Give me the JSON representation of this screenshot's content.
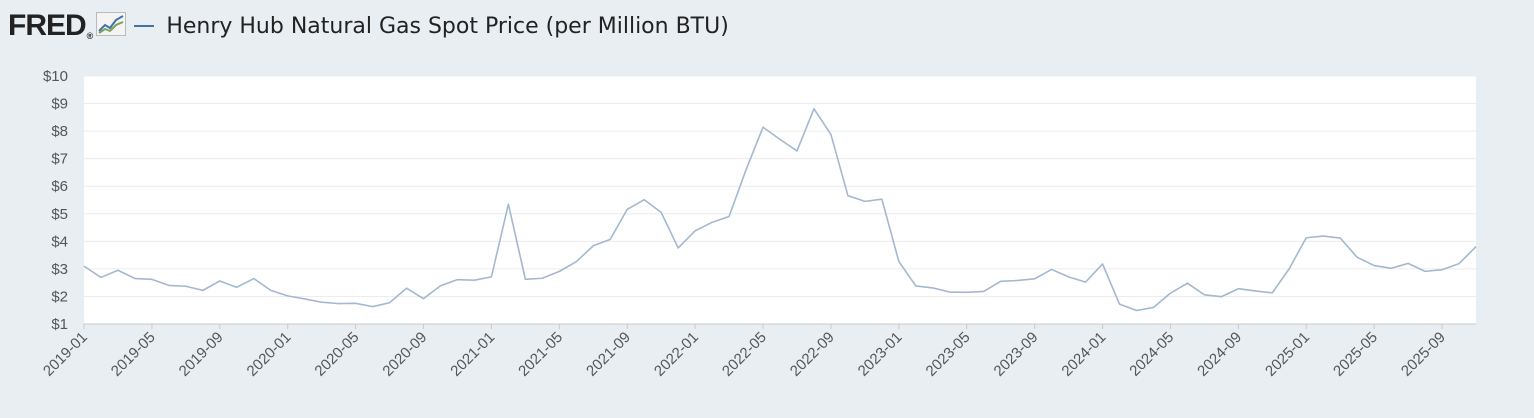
{
  "header": {
    "logo_text": "FRED",
    "logo_mark": "®",
    "logo_icon": "line-chart-icon",
    "series_title": "Henry Hub Natural Gas Spot Price (per Million BTU)",
    "series_color": "#4572a7"
  },
  "chart_data": {
    "type": "line",
    "title": "Henry Hub Natural Gas Spot Price (per Million BTU)",
    "xlabel": "",
    "ylabel": "",
    "ylim": [
      1,
      10
    ],
    "yticks": [
      "$1",
      "$2",
      "$3",
      "$4",
      "$5",
      "$6",
      "$7",
      "$8",
      "$9",
      "$10"
    ],
    "xticks": [
      "2019-01",
      "2019-05",
      "2019-09",
      "2020-01",
      "2020-05",
      "2020-09",
      "2021-01",
      "2021-05",
      "2021-09",
      "2022-01",
      "2022-05",
      "2022-09",
      "2023-01",
      "2023-05",
      "2023-09",
      "2024-01",
      "2024-05",
      "2024-09",
      "2025-01",
      "2025-05",
      "2025-09"
    ],
    "line_color": "#a3b8d0",
    "grid": true,
    "x": [
      "2019-01",
      "2019-02",
      "2019-03",
      "2019-04",
      "2019-05",
      "2019-06",
      "2019-07",
      "2019-08",
      "2019-09",
      "2019-10",
      "2019-11",
      "2019-12",
      "2020-01",
      "2020-02",
      "2020-03",
      "2020-04",
      "2020-05",
      "2020-06",
      "2020-07",
      "2020-08",
      "2020-09",
      "2020-10",
      "2020-11",
      "2020-12",
      "2021-01",
      "2021-02",
      "2021-03",
      "2021-04",
      "2021-05",
      "2021-06",
      "2021-07",
      "2021-08",
      "2021-09",
      "2021-10",
      "2021-11",
      "2021-12",
      "2022-01",
      "2022-02",
      "2022-03",
      "2022-04",
      "2022-05",
      "2022-06",
      "2022-07",
      "2022-08",
      "2022-09",
      "2022-10",
      "2022-11",
      "2022-12",
      "2023-01",
      "2023-02",
      "2023-03",
      "2023-04",
      "2023-05",
      "2023-06",
      "2023-07",
      "2023-08",
      "2023-09",
      "2023-10",
      "2023-11",
      "2023-12",
      "2024-01",
      "2024-02",
      "2024-03",
      "2024-04",
      "2024-05",
      "2024-06",
      "2024-07",
      "2024-08",
      "2024-09",
      "2024-10",
      "2024-11",
      "2024-12",
      "2025-01",
      "2025-02",
      "2025-03",
      "2025-04",
      "2025-05",
      "2025-06",
      "2025-07",
      "2025-08",
      "2025-09",
      "2025-10",
      "2025-11"
    ],
    "series": [
      {
        "values": [
          3.1,
          2.69,
          2.95,
          2.65,
          2.62,
          2.4,
          2.37,
          2.22,
          2.56,
          2.33,
          2.65,
          2.22,
          2.02,
          1.91,
          1.79,
          1.74,
          1.75,
          1.63,
          1.77,
          2.3,
          1.92,
          2.39,
          2.61,
          2.59,
          2.71,
          5.35,
          2.62,
          2.66,
          2.91,
          3.26,
          3.84,
          4.07,
          5.16,
          5.51,
          5.05,
          3.76,
          4.38,
          4.69,
          4.9,
          6.6,
          8.14,
          7.7,
          7.28,
          8.81,
          7.88,
          5.66,
          5.45,
          5.53,
          3.27,
          2.38,
          2.31,
          2.16,
          2.15,
          2.18,
          2.55,
          2.58,
          2.64,
          2.98,
          2.71,
          2.52,
          3.18,
          1.72,
          1.49,
          1.6,
          2.12,
          2.48,
          2.06,
          1.99,
          2.28,
          2.2,
          2.13,
          3.01,
          4.13,
          4.19,
          4.12,
          3.42,
          3.12,
          3.02,
          3.2,
          2.91,
          2.97,
          3.19,
          3.81
        ]
      }
    ]
  }
}
